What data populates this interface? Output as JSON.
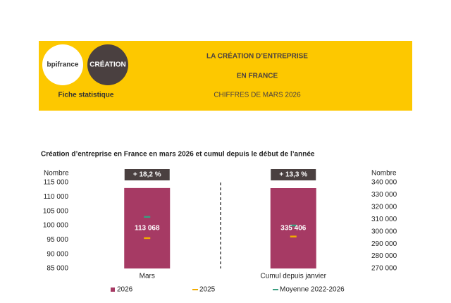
{
  "header": {
    "logos": [
      "bpifrance",
      "CRÉATION"
    ],
    "subtitle": "Fiche statistique",
    "title_lines": [
      "LA CRÉATION D’ENTREPRISE",
      "EN FRANCE"
    ],
    "edition": "CHIFFRES DE MARS 2026"
  },
  "chart_data": {
    "type": "bar",
    "title": "Création d’entreprise en France en mars 2026 et cumul depuis le début de l’année",
    "y_label": "Nombre",
    "y2_label": "Nombre",
    "categories": [
      "Mars",
      "Cumul depuis janvier"
    ],
    "category_axes": [
      "y",
      "y2"
    ],
    "annotations": [
      "+ 18,2 %",
      "+ 13,3 %"
    ],
    "series": [
      {
        "name": "2026",
        "color": "#a63a64",
        "mark": "bar",
        "values": [
          113068,
          335406
        ],
        "value_labels": [
          "113 068",
          "335 406"
        ]
      },
      {
        "name": "2025",
        "color": "#f2ac00",
        "mark": "dash",
        "values": [
          95600,
          296000
        ]
      },
      {
        "name": "Moyenne 2022-2026",
        "color": "#3a9e80",
        "mark": "dash",
        "values": [
          103000,
          305000
        ]
      }
    ],
    "ylim": [
      85000,
      115000
    ],
    "yticks": [
      {
        "value": 85000,
        "label": "85 000"
      },
      {
        "value": 90000,
        "label": "90 000"
      },
      {
        "value": 95000,
        "label": "95 000"
      },
      {
        "value": 100000,
        "label": "100 000"
      },
      {
        "value": 105000,
        "label": "105 000"
      },
      {
        "value": 110000,
        "label": "110 000"
      },
      {
        "value": 115000,
        "label": "115 000"
      }
    ],
    "y2lim": [
      270000,
      340000
    ],
    "y2ticks": [
      {
        "value": 270000,
        "label": "270 000"
      },
      {
        "value": 280000,
        "label": "280 000"
      },
      {
        "value": 290000,
        "label": "290 000"
      },
      {
        "value": 300000,
        "label": "300 000"
      },
      {
        "value": 310000,
        "label": "310 000"
      },
      {
        "value": 320000,
        "label": "320 000"
      },
      {
        "value": 330000,
        "label": "330 000"
      },
      {
        "value": 340000,
        "label": "340 000"
      }
    ],
    "annotation_color": "#4a4040"
  }
}
